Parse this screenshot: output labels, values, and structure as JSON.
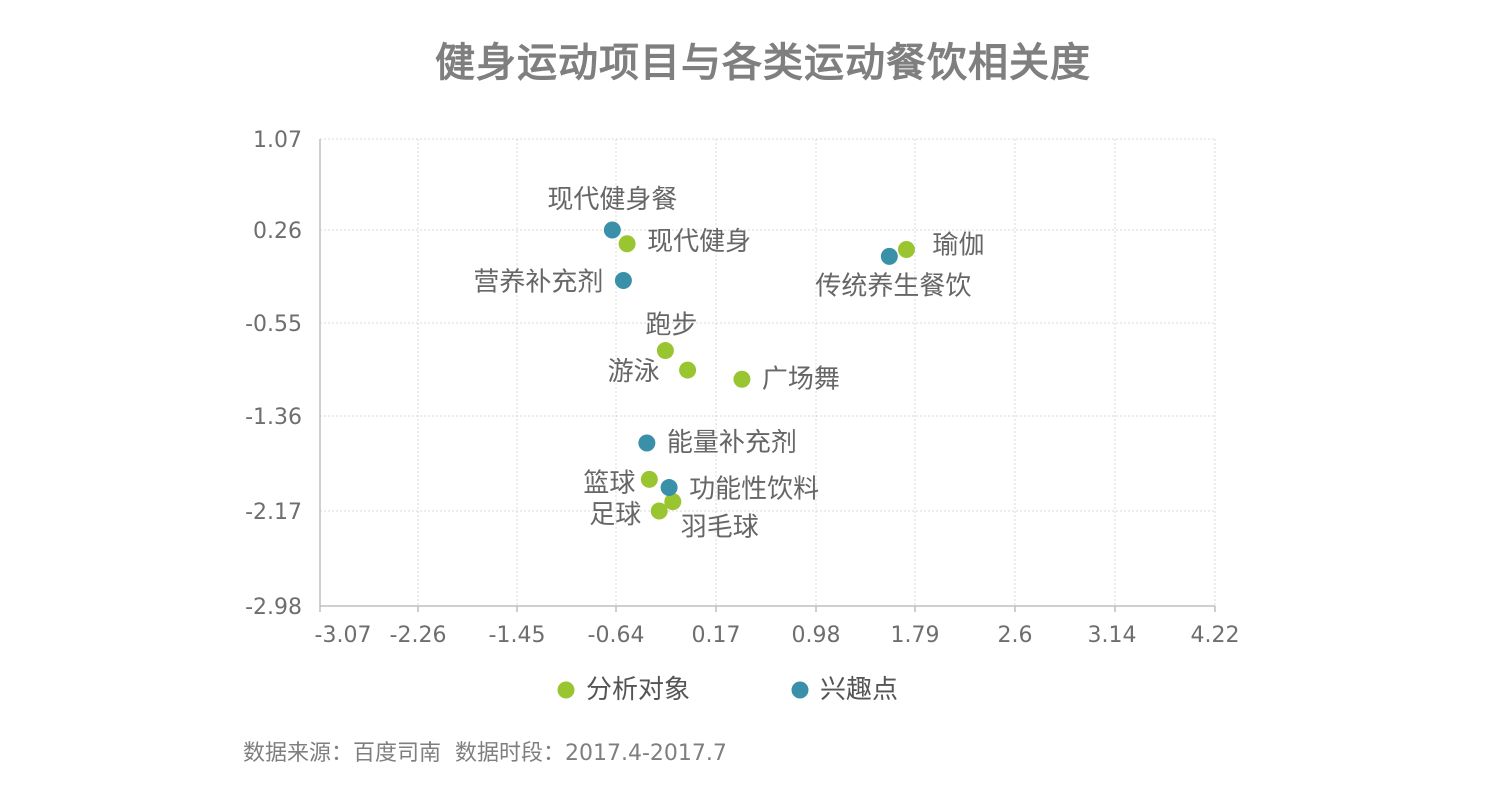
{
  "chart_data": {
    "type": "scatter",
    "title": "健身运动项目与各类运动餐饮相关度",
    "xlabel": "",
    "ylabel": "",
    "x_ticks": [
      "-3.07",
      "-2.26",
      "-1.45",
      "-0.64",
      "0.17",
      "0.98",
      "1.79",
      "2.6",
      "3.14",
      "4.22"
    ],
    "y_ticks": [
      "1.07",
      "0.26",
      "-0.55",
      "-1.36",
      "-2.17",
      "-2.98"
    ],
    "grid": true,
    "legend_position": "bottom",
    "colors": {
      "分析对象": "#99c530",
      "兴趣点": "#3a90a8"
    },
    "series": [
      {
        "name": "分析对象",
        "points": [
          {
            "label": "现代健身",
            "x": -0.55,
            "y": 0.14
          },
          {
            "label": "瑜伽",
            "x": 1.72,
            "y": 0.09
          },
          {
            "label": "跑步",
            "x": -0.24,
            "y": -0.79
          },
          {
            "label": "游泳",
            "x": -0.06,
            "y": -0.96
          },
          {
            "label": "广场舞",
            "x": 0.38,
            "y": -1.04
          },
          {
            "label": "篮球",
            "x": -0.37,
            "y": -1.9
          },
          {
            "label": "羽毛球",
            "x": -0.18,
            "y": -2.09
          },
          {
            "label": "足球",
            "x": -0.29,
            "y": -2.17
          }
        ]
      },
      {
        "name": "兴趣点",
        "points": [
          {
            "label": "现代健身餐",
            "x": -0.67,
            "y": 0.26
          },
          {
            "label": "传统养生餐饮",
            "x": 1.58,
            "y": 0.03
          },
          {
            "label": "营养补充剂",
            "x": -0.58,
            "y": -0.18
          },
          {
            "label": "能量补充剂",
            "x": -0.39,
            "y": -1.59
          },
          {
            "label": "功能性饮料",
            "x": -0.21,
            "y": -1.97
          }
        ]
      }
    ]
  },
  "footer": {
    "source": "数据来源：百度司南  数据时段：2017.4-2017.7"
  }
}
